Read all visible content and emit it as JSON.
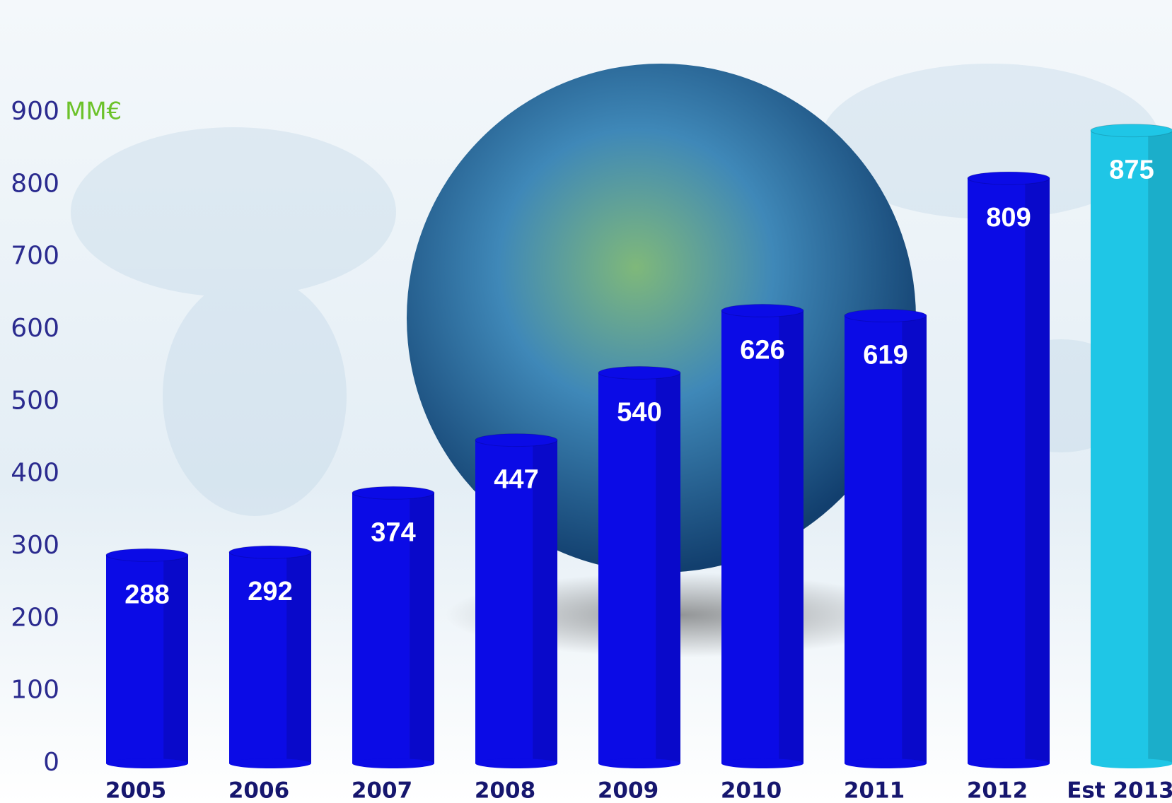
{
  "chart_data": {
    "type": "bar",
    "unit_label": "MM€",
    "categories": [
      "2005",
      "2006",
      "2007",
      "2008",
      "2009",
      "2010",
      "2011",
      "2012",
      "Est 2013"
    ],
    "values": [
      288,
      292,
      374,
      447,
      540,
      626,
      619,
      809,
      875
    ],
    "colors": [
      "#0b0be6",
      "#0b0be6",
      "#0b0be6",
      "#0b0be6",
      "#0b0be6",
      "#0b0be6",
      "#0b0be6",
      "#0b0be6",
      "#1fc6e6"
    ],
    "ylim": [
      0,
      900
    ],
    "yticks": [
      0,
      100,
      200,
      300,
      400,
      500,
      600,
      700,
      800,
      900
    ]
  }
}
